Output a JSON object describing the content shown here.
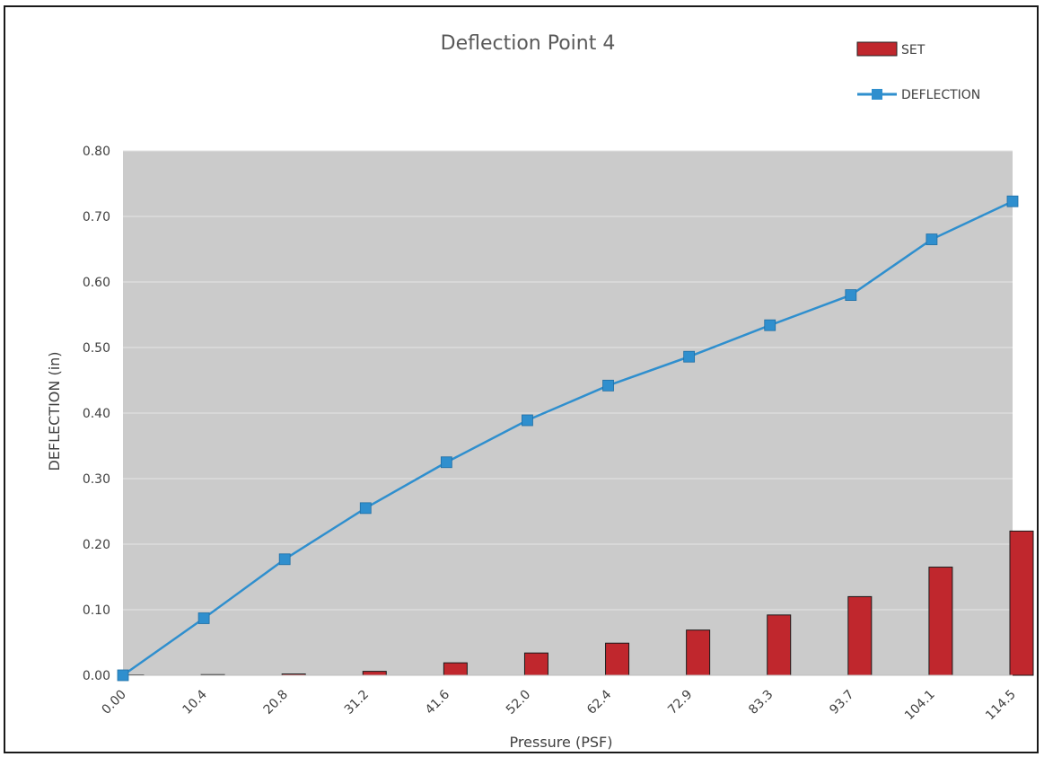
{
  "chart_data": {
    "type": "bar+line",
    "title": "Deflection Point 4",
    "xlabel": "Pressure (PSF)",
    "ylabel": "DEFLECTION (in)",
    "categories": [
      "0.00",
      "10.4",
      "20.8",
      "31.2",
      "41.6",
      "52.0",
      "62.4",
      "72.9",
      "83.3",
      "93.7",
      "104.1",
      "114.5"
    ],
    "ylim": [
      0,
      0.8
    ],
    "yticks": [
      "0.00",
      "0.10",
      "0.20",
      "0.30",
      "0.40",
      "0.50",
      "0.60",
      "0.70",
      "0.80"
    ],
    "grid": true,
    "legend_position": "top-right",
    "series": [
      {
        "name": "SET",
        "kind": "bar",
        "color": "#c0272d",
        "values": [
          0.0,
          0.001,
          0.002,
          0.006,
          0.019,
          0.034,
          0.049,
          0.069,
          0.092,
          0.12,
          0.165,
          0.22
        ]
      },
      {
        "name": "DEFLECTION",
        "kind": "line",
        "color": "#2f8fce",
        "values": [
          0.0,
          0.087,
          0.177,
          0.255,
          0.325,
          0.389,
          0.442,
          0.486,
          0.534,
          0.58,
          0.665,
          0.723
        ]
      }
    ],
    "colors": {
      "plot_background": "#cbcbcb",
      "gridline": "#e6e6e6"
    }
  }
}
